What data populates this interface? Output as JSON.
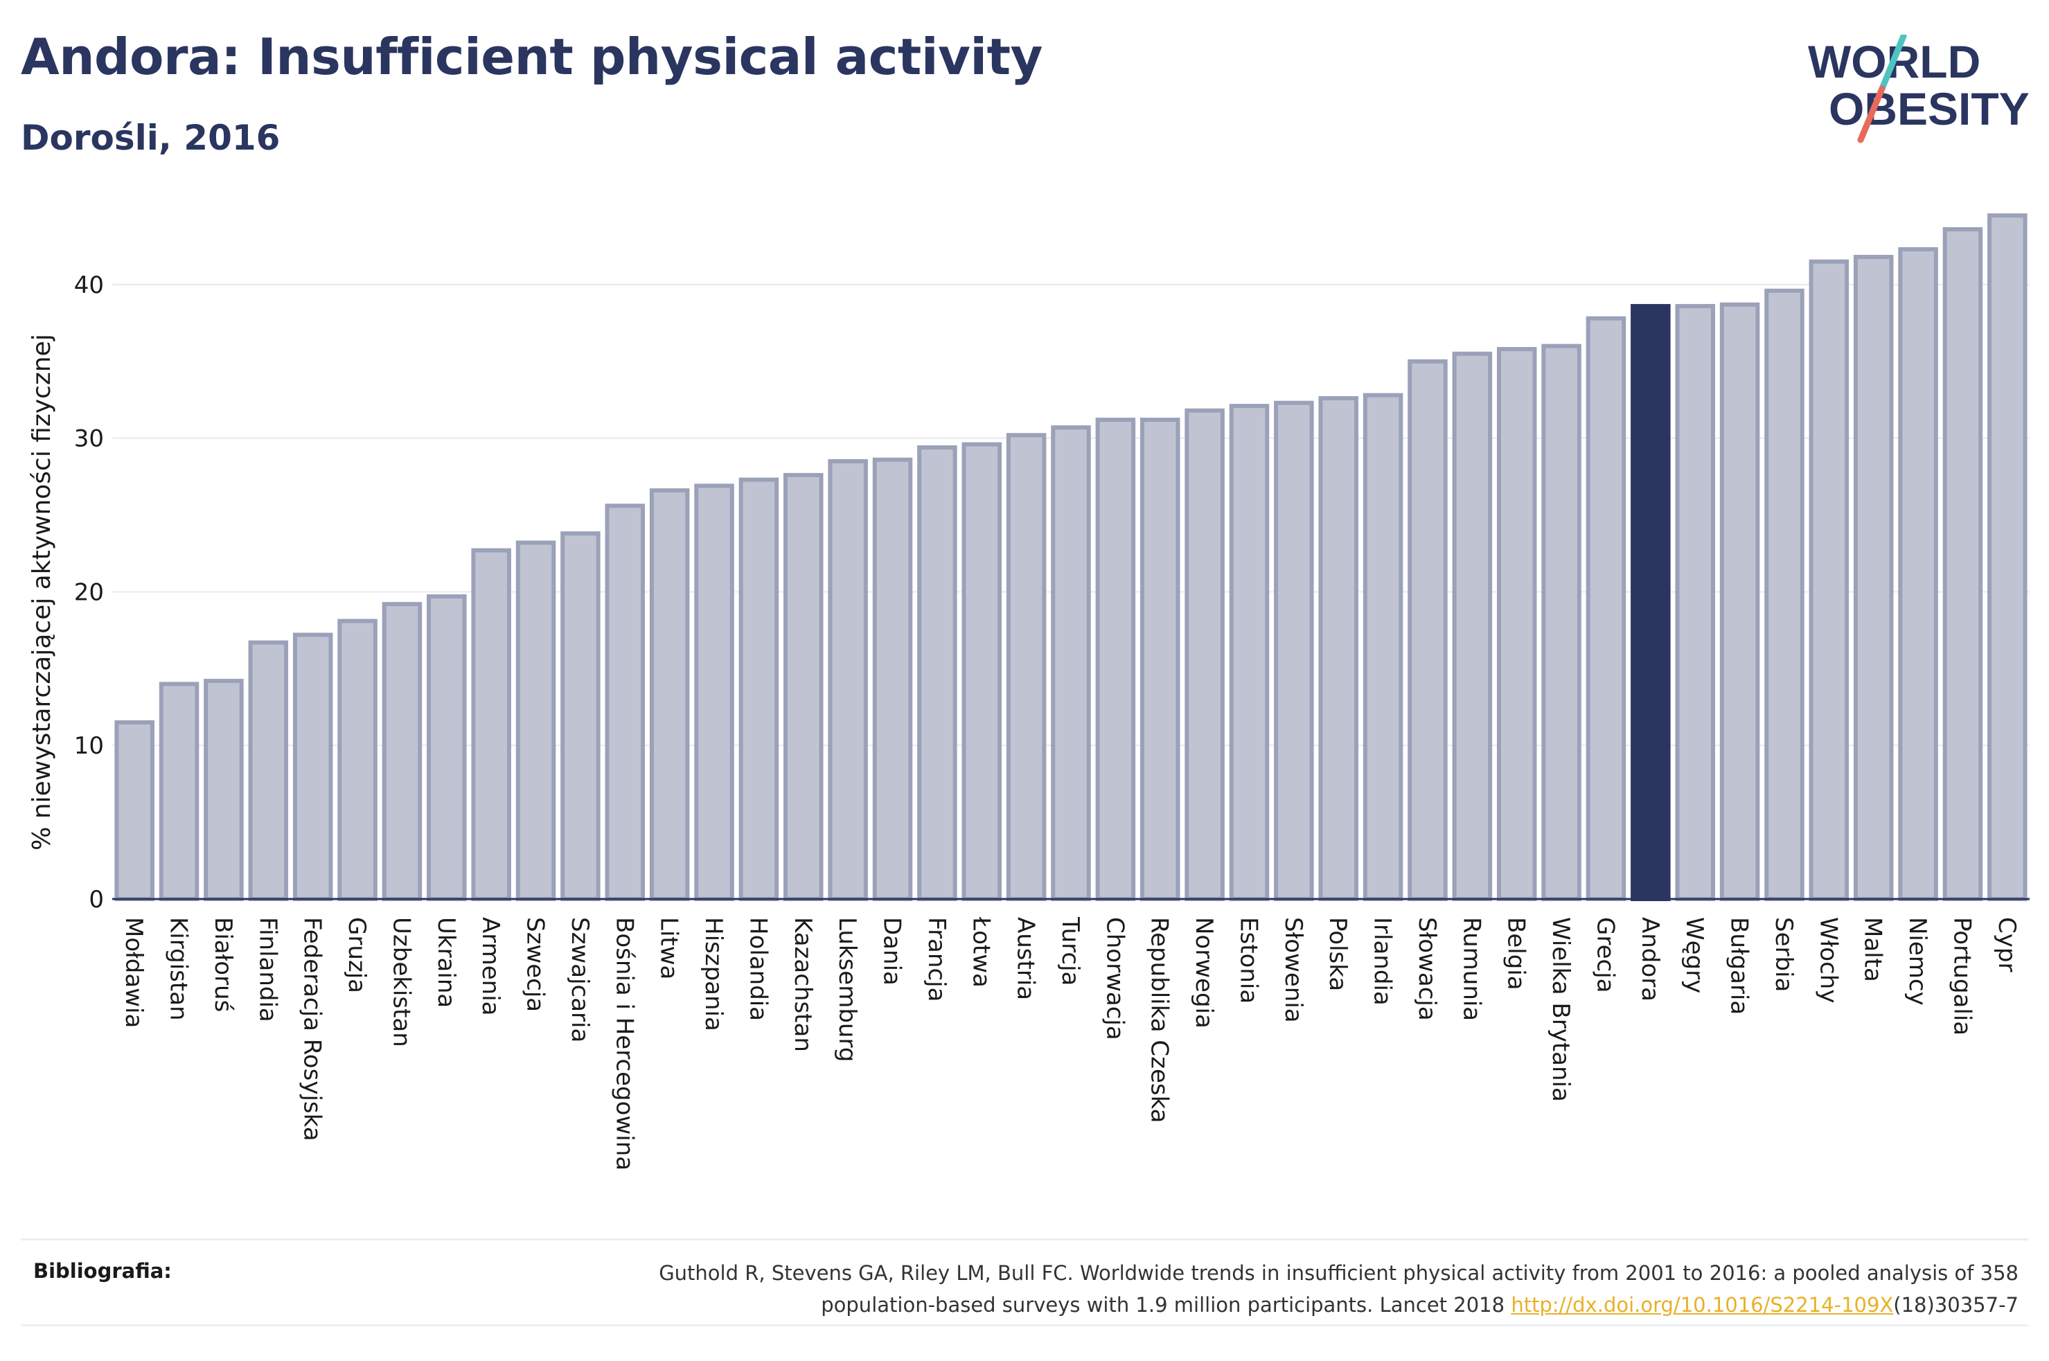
{
  "header": {
    "title": "Andora: Insufficient physical activity",
    "subtitle": "Dorośli, 2016"
  },
  "logo": {
    "line1": "WORLD",
    "line2": "OBESITY",
    "text_color": "#2a3560",
    "slash_colors": [
      "#4fc3c0",
      "#e86a5a"
    ]
  },
  "colors": {
    "bar_fill": "#c0c4d2",
    "bar_stroke": "#9aa1b8",
    "highlight": "#2a3560",
    "grid": "#e8e9ee",
    "axis": "#2a3560"
  },
  "chart_data": {
    "type": "bar",
    "title": "",
    "xlabel": "",
    "ylabel": "% niewystarczającej aktywności fizycznej",
    "ylim": [
      0,
      45
    ],
    "yticks": [
      0,
      10,
      20,
      30,
      40
    ],
    "grid": true,
    "highlight": "Andora",
    "categories": [
      "Mołdawia",
      "Kirgistan",
      "Białoruś",
      "Finlandia",
      "Federacja Rosyjska",
      "Gruzja",
      "Uzbekistan",
      "Ukraina",
      "Armenia",
      "Szwecja",
      "Szwajcaria",
      "Bośnia i Hercegowina",
      "Litwa",
      "Hiszpania",
      "Holandia",
      "Kazachstan",
      "Luksemburg",
      "Dania",
      "Francja",
      "Łotwa",
      "Austria",
      "Turcja",
      "Chorwacja",
      "Republika Czeska",
      "Norwegia",
      "Estonia",
      "Słowenia",
      "Polska",
      "Irlandia",
      "Słowacja",
      "Rumunia",
      "Belgia",
      "Wielka Brytania",
      "Grecja",
      "Andora",
      "Węgry",
      "Bułgaria",
      "Serbia",
      "Włochy",
      "Malta",
      "Niemcy",
      "Portugalia",
      "Cypr"
    ],
    "values": [
      11.5,
      14.0,
      14.2,
      16.7,
      17.2,
      18.1,
      19.2,
      19.7,
      22.7,
      23.2,
      23.8,
      25.6,
      26.6,
      26.9,
      27.3,
      27.6,
      28.5,
      28.6,
      29.4,
      29.6,
      30.2,
      30.7,
      31.2,
      31.2,
      31.8,
      32.1,
      32.3,
      32.6,
      32.8,
      35.0,
      35.5,
      35.8,
      36.0,
      37.8,
      38.6,
      38.6,
      38.7,
      39.6,
      41.5,
      41.8,
      42.3,
      43.6,
      44.5
    ]
  },
  "bibliography": {
    "label": "Bibliografia:",
    "text_line1": "Guthold R, Stevens GA, Riley LM, Bull FC. Worldwide trends in insufficient physical activity from 2001 to 2016: a pooled analysis of 358",
    "text_line2_prefix": "population-based surveys with 1.9 million participants. Lancet 2018 ",
    "link_text": "http://dx.doi.org/10.1016/S2214-109X",
    "text_line2_suffix": "(18)30357-7"
  }
}
